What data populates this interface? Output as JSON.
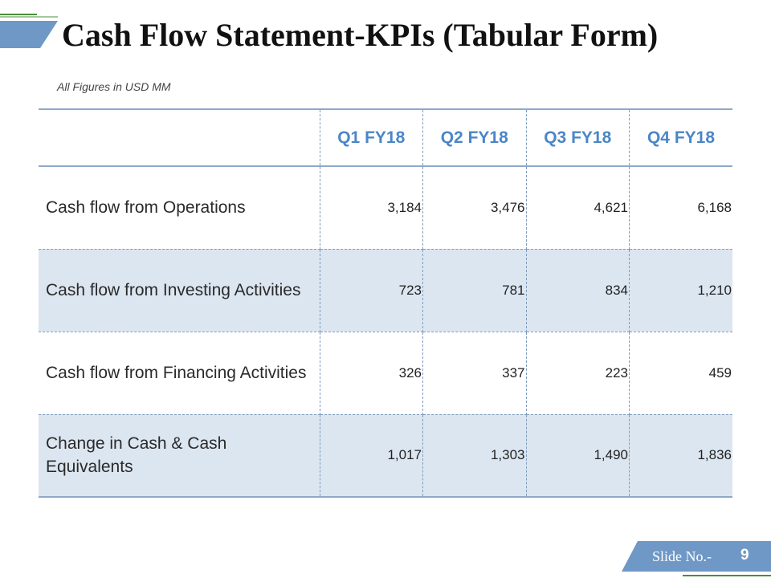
{
  "slide": {
    "title": "Cash Flow Statement-KPIs (Tabular Form)",
    "units_note": "All Figures in USD MM",
    "slide_label": "Slide No.-",
    "slide_number": "9"
  },
  "table": {
    "corner_header": "",
    "columns": [
      "Q1 FY18",
      "Q2 FY18",
      "Q3 FY18",
      "Q4 FY18"
    ],
    "rows": [
      {
        "label": "Cash flow from Operations",
        "values": [
          "3,184",
          "3,476",
          "4,621",
          "6,168"
        ]
      },
      {
        "label": "Cash flow from Investing Activities",
        "values": [
          "723",
          "781",
          "834",
          "1,210"
        ]
      },
      {
        "label": "Cash flow from Financing Activities",
        "values": [
          "326",
          "337",
          "223",
          "459"
        ]
      },
      {
        "label": "Change in Cash & Cash Equivalents",
        "values": [
          "1,017",
          "1,303",
          "1,490",
          "1,836"
        ]
      }
    ]
  },
  "colors": {
    "accent_blue": "#4a86c8",
    "deco_blue": "#6f98c6",
    "deco_green": "#4b8c3c",
    "row_shade": "#dce6f0",
    "grid_line": "#8ea9c8"
  }
}
